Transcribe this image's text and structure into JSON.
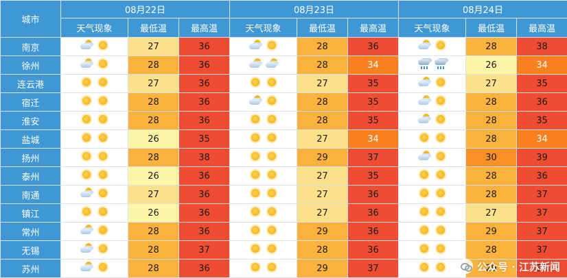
{
  "header": {
    "city_label": "城市",
    "days": [
      "08月22日",
      "08月23日",
      "08月24日"
    ],
    "sub": [
      "天气现象",
      "最低温",
      "最高温"
    ]
  },
  "colors": {
    "header_bg": "#3f97d6",
    "t26": "#fdf6a9",
    "t27": "#fde08a",
    "t28": "#fbb23c",
    "t29": "#fbb23c",
    "t30": "#f89026",
    "t34": "#f8801f",
    "t35": "#f04c32",
    "t36": "#f04c32",
    "t37": "#f04c32",
    "t38": "#f04c32",
    "t39": "#f04c32"
  },
  "rows": [
    {
      "city": "南京",
      "days": [
        {
          "icons": [
            "partly-cloudy-icon",
            "sun-icon"
          ],
          "min": "27",
          "max": "36"
        },
        {
          "icons": [
            "partly-cloudy-icon",
            "sun-icon"
          ],
          "min": "28",
          "max": "36"
        },
        {
          "icons": [
            "partly-cloudy-icon",
            "sun-icon"
          ],
          "min": "28",
          "max": "38"
        }
      ]
    },
    {
      "city": "徐州",
      "days": [
        {
          "icons": [
            "partly-cloudy-icon",
            "sun-icon"
          ],
          "min": "28",
          "max": "36"
        },
        {
          "icons": [
            "partly-cloudy-icon",
            "partly-cloudy-icon"
          ],
          "min": "28",
          "max": "34"
        },
        {
          "icons": [
            "rain-icon",
            "rain-icon"
          ],
          "min": "26",
          "max": "34"
        }
      ]
    },
    {
      "city": "连云港",
      "days": [
        {
          "icons": [
            "sun-icon",
            "sun-icon"
          ],
          "min": "27",
          "max": "36"
        },
        {
          "icons": [
            "sun-icon",
            "sun-icon"
          ],
          "min": "27",
          "max": "35"
        },
        {
          "icons": [
            "partly-cloudy-icon",
            "sun-icon"
          ],
          "min": "27",
          "max": "35"
        }
      ]
    },
    {
      "city": "宿迁",
      "days": [
        {
          "icons": [
            "sun-icon",
            "sun-icon"
          ],
          "min": "28",
          "max": "36"
        },
        {
          "icons": [
            "partly-cloudy-icon",
            "sun-icon"
          ],
          "min": "28",
          "max": "35"
        },
        {
          "icons": [
            "partly-cloudy-icon",
            "sun-icon"
          ],
          "min": "28",
          "max": "36"
        }
      ]
    },
    {
      "city": "淮安",
      "days": [
        {
          "icons": [
            "sun-icon",
            "sun-icon"
          ],
          "min": "28",
          "max": "36"
        },
        {
          "icons": [
            "sun-icon",
            "sun-icon"
          ],
          "min": "28",
          "max": "35"
        },
        {
          "icons": [
            "partly-cloudy-icon",
            "sun-icon"
          ],
          "min": "28",
          "max": "35"
        }
      ]
    },
    {
      "city": "盐城",
      "days": [
        {
          "icons": [
            "sun-icon",
            "sun-icon"
          ],
          "min": "26",
          "max": "35"
        },
        {
          "icons": [
            "sun-icon",
            "sun-icon"
          ],
          "min": "27",
          "max": "34"
        },
        {
          "icons": [
            "sun-icon",
            "sun-icon"
          ],
          "min": "28",
          "max": "34"
        }
      ]
    },
    {
      "city": "扬州",
      "days": [
        {
          "icons": [
            "sun-icon",
            "sun-icon"
          ],
          "min": "28",
          "max": "38"
        },
        {
          "icons": [
            "sun-icon",
            "sun-icon"
          ],
          "min": "29",
          "max": "37"
        },
        {
          "icons": [
            "partly-cloudy-icon",
            "sun-icon"
          ],
          "min": "30",
          "max": "39"
        }
      ]
    },
    {
      "city": "泰州",
      "days": [
        {
          "icons": [
            "sun-icon",
            "sun-icon"
          ],
          "min": "26",
          "max": "36"
        },
        {
          "icons": [
            "sun-icon",
            "sun-icon"
          ],
          "min": "27",
          "max": "35"
        },
        {
          "icons": [
            "sun-icon",
            "sun-icon"
          ],
          "min": "28",
          "max": "36"
        }
      ]
    },
    {
      "city": "南通",
      "days": [
        {
          "icons": [
            "partly-cloudy-icon",
            "sun-icon"
          ],
          "min": "27",
          "max": "36"
        },
        {
          "icons": [
            "sun-icon",
            "sun-icon"
          ],
          "min": "27",
          "max": "36"
        },
        {
          "icons": [
            "sun-icon",
            "sun-icon"
          ],
          "min": "28",
          "max": "37"
        }
      ]
    },
    {
      "city": "镇江",
      "days": [
        {
          "icons": [
            "sun-icon",
            "sun-icon"
          ],
          "min": "26",
          "max": "36"
        },
        {
          "icons": [
            "sun-icon",
            "sun-icon"
          ],
          "min": "27",
          "max": "36"
        },
        {
          "icons": [
            "sun-icon",
            "sun-icon"
          ],
          "min": "27",
          "max": "37"
        }
      ]
    },
    {
      "city": "常州",
      "days": [
        {
          "icons": [
            "partly-cloudy-icon",
            "sun-icon"
          ],
          "min": "28",
          "max": "36"
        },
        {
          "icons": [
            "sun-icon",
            "sun-icon"
          ],
          "min": "29",
          "max": "36"
        },
        {
          "icons": [
            "sun-icon",
            "sun-icon"
          ],
          "min": "29",
          "max": "37"
        }
      ]
    },
    {
      "city": "无锡",
      "days": [
        {
          "icons": [
            "partly-cloudy-icon",
            "sun-icon"
          ],
          "min": "28",
          "max": "37"
        },
        {
          "icons": [
            "sun-icon",
            "sun-icon"
          ],
          "min": "28",
          "max": "36"
        },
        {
          "icons": [
            "sun-icon",
            "sun-icon"
          ],
          "min": "28",
          "max": "37"
        }
      ]
    },
    {
      "city": "苏州",
      "days": [
        {
          "icons": [
            "partly-cloudy-icon",
            "sun-icon"
          ],
          "min": "28",
          "max": "36"
        },
        {
          "icons": [
            "sun-icon",
            "sun-icon"
          ],
          "min": "29",
          "max": "37"
        },
        {
          "icons": [
            "sun-icon",
            "sun-icon"
          ],
          "min": "29",
          "max": "37"
        }
      ]
    }
  ],
  "watermark": {
    "text": "公众号 · 江苏新闻"
  }
}
